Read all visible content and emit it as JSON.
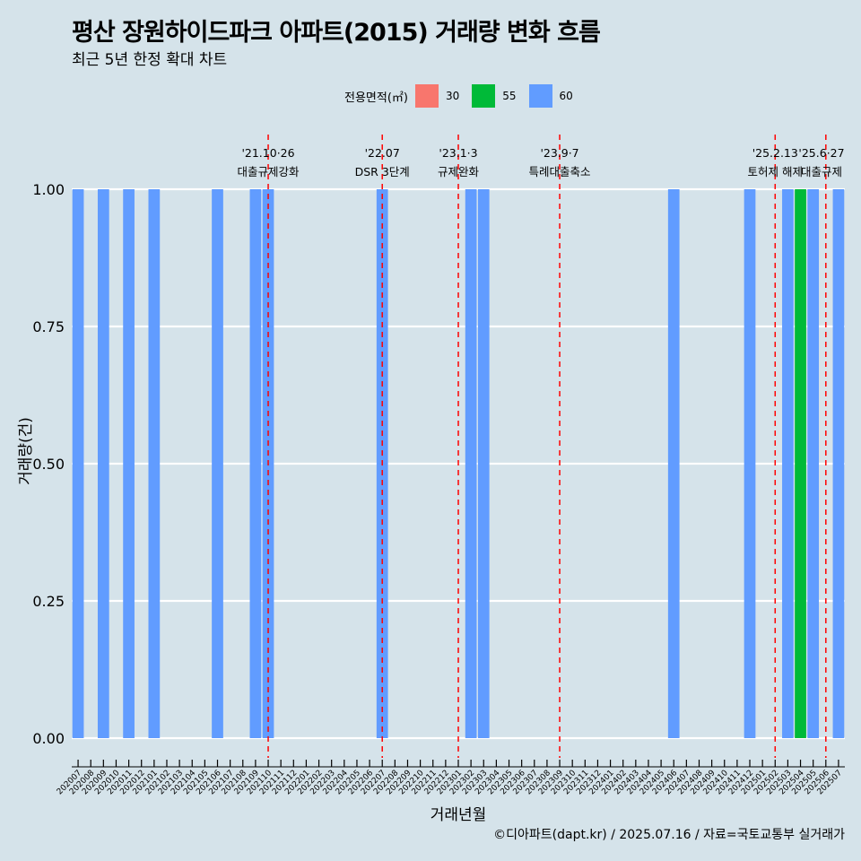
{
  "header": {
    "title": "평산 장원하이드파크 아파트(2015) 거래량 변화 흐름",
    "subtitle": "최근 5년 한정 확대 차트"
  },
  "caption": "©디아파트(dapt.kr) / 2025.07.16 / 자료=국토교통부 실거래가",
  "legend": {
    "title": "전용면적(㎡)",
    "items": [
      {
        "label": "30",
        "color": "#f8766d"
      },
      {
        "label": "55",
        "color": "#00ba38"
      },
      {
        "label": "60",
        "color": "#619cff"
      }
    ]
  },
  "chart_data": {
    "type": "bar",
    "xlabel": "거래년월",
    "ylabel": "거래량(건)",
    "ylim": [
      0,
      1
    ],
    "yticks": [
      "0.00",
      "0.25",
      "0.50",
      "0.75",
      "1.00"
    ],
    "grid": true,
    "legend_position": "top",
    "categories": [
      "202007",
      "202008",
      "202009",
      "202010",
      "202011",
      "202012",
      "202101",
      "202102",
      "202103",
      "202104",
      "202105",
      "202106",
      "202107",
      "202108",
      "202109",
      "202110",
      "202111",
      "202112",
      "202201",
      "202202",
      "202203",
      "202204",
      "202205",
      "202206",
      "202207",
      "202208",
      "202209",
      "202210",
      "202211",
      "202212",
      "202301",
      "202302",
      "202303",
      "202304",
      "202305",
      "202306",
      "202307",
      "202308",
      "202309",
      "202310",
      "202311",
      "202312",
      "202401",
      "202402",
      "202403",
      "202404",
      "202405",
      "202406",
      "202407",
      "202408",
      "202409",
      "202410",
      "202411",
      "202412",
      "202501",
      "202502",
      "202503",
      "202504",
      "202505",
      "202506",
      "202507"
    ],
    "series": [
      {
        "name": "30",
        "color": "#f8766d",
        "values": [
          0,
          0,
          0,
          0,
          0,
          0,
          0,
          0,
          0,
          0,
          0,
          0,
          0,
          0,
          0,
          0,
          0,
          0,
          0,
          0,
          0,
          0,
          0,
          0,
          0,
          0,
          0,
          0,
          0,
          0,
          0,
          0,
          0,
          0,
          0,
          0,
          0,
          0,
          0,
          0,
          0,
          0,
          0,
          0,
          0,
          0,
          0,
          0,
          0,
          0,
          0,
          0,
          0,
          0,
          0,
          0,
          0,
          0,
          0,
          0,
          0
        ]
      },
      {
        "name": "55",
        "color": "#00ba38",
        "values": [
          0,
          0,
          0,
          0,
          0,
          0,
          0,
          0,
          0,
          0,
          0,
          0,
          0,
          0,
          0,
          0,
          0,
          0,
          0,
          0,
          0,
          0,
          0,
          0,
          0,
          0,
          0,
          0,
          0,
          0,
          0,
          0,
          0,
          0,
          0,
          0,
          0,
          0,
          0,
          0,
          0,
          0,
          0,
          0,
          0,
          0,
          0,
          0,
          0,
          0,
          0,
          0,
          0,
          0,
          0,
          0,
          0,
          1,
          0,
          0,
          0
        ]
      },
      {
        "name": "60",
        "color": "#619cff",
        "values": [
          1,
          0,
          1,
          0,
          1,
          0,
          1,
          0,
          0,
          0,
          0,
          1,
          0,
          0,
          1,
          1,
          0,
          0,
          0,
          0,
          0,
          0,
          0,
          0,
          1,
          0,
          0,
          0,
          0,
          0,
          0,
          1,
          1,
          0,
          0,
          0,
          0,
          0,
          0,
          0,
          0,
          0,
          0,
          0,
          0,
          0,
          0,
          1,
          0,
          0,
          0,
          0,
          0,
          1,
          0,
          0,
          1,
          0,
          1,
          0,
          1
        ]
      }
    ],
    "annotations": [
      {
        "x": "202110",
        "line1": "'21.10·26",
        "line2": "대출규제강화"
      },
      {
        "x": "202207",
        "line1": "'22.07",
        "line2": "DSR 3단계"
      },
      {
        "x": "202301",
        "line1": "'23.1·3",
        "line2": "규제완화"
      },
      {
        "x": "202309",
        "line1": "'23.9·7",
        "line2": "특례대출축소"
      },
      {
        "x": "202502",
        "line1": "'25.2.13",
        "line2": "토허제 해제"
      },
      {
        "x": "202506",
        "line1": "'25.6·27",
        "line2": "대출규제"
      }
    ]
  }
}
